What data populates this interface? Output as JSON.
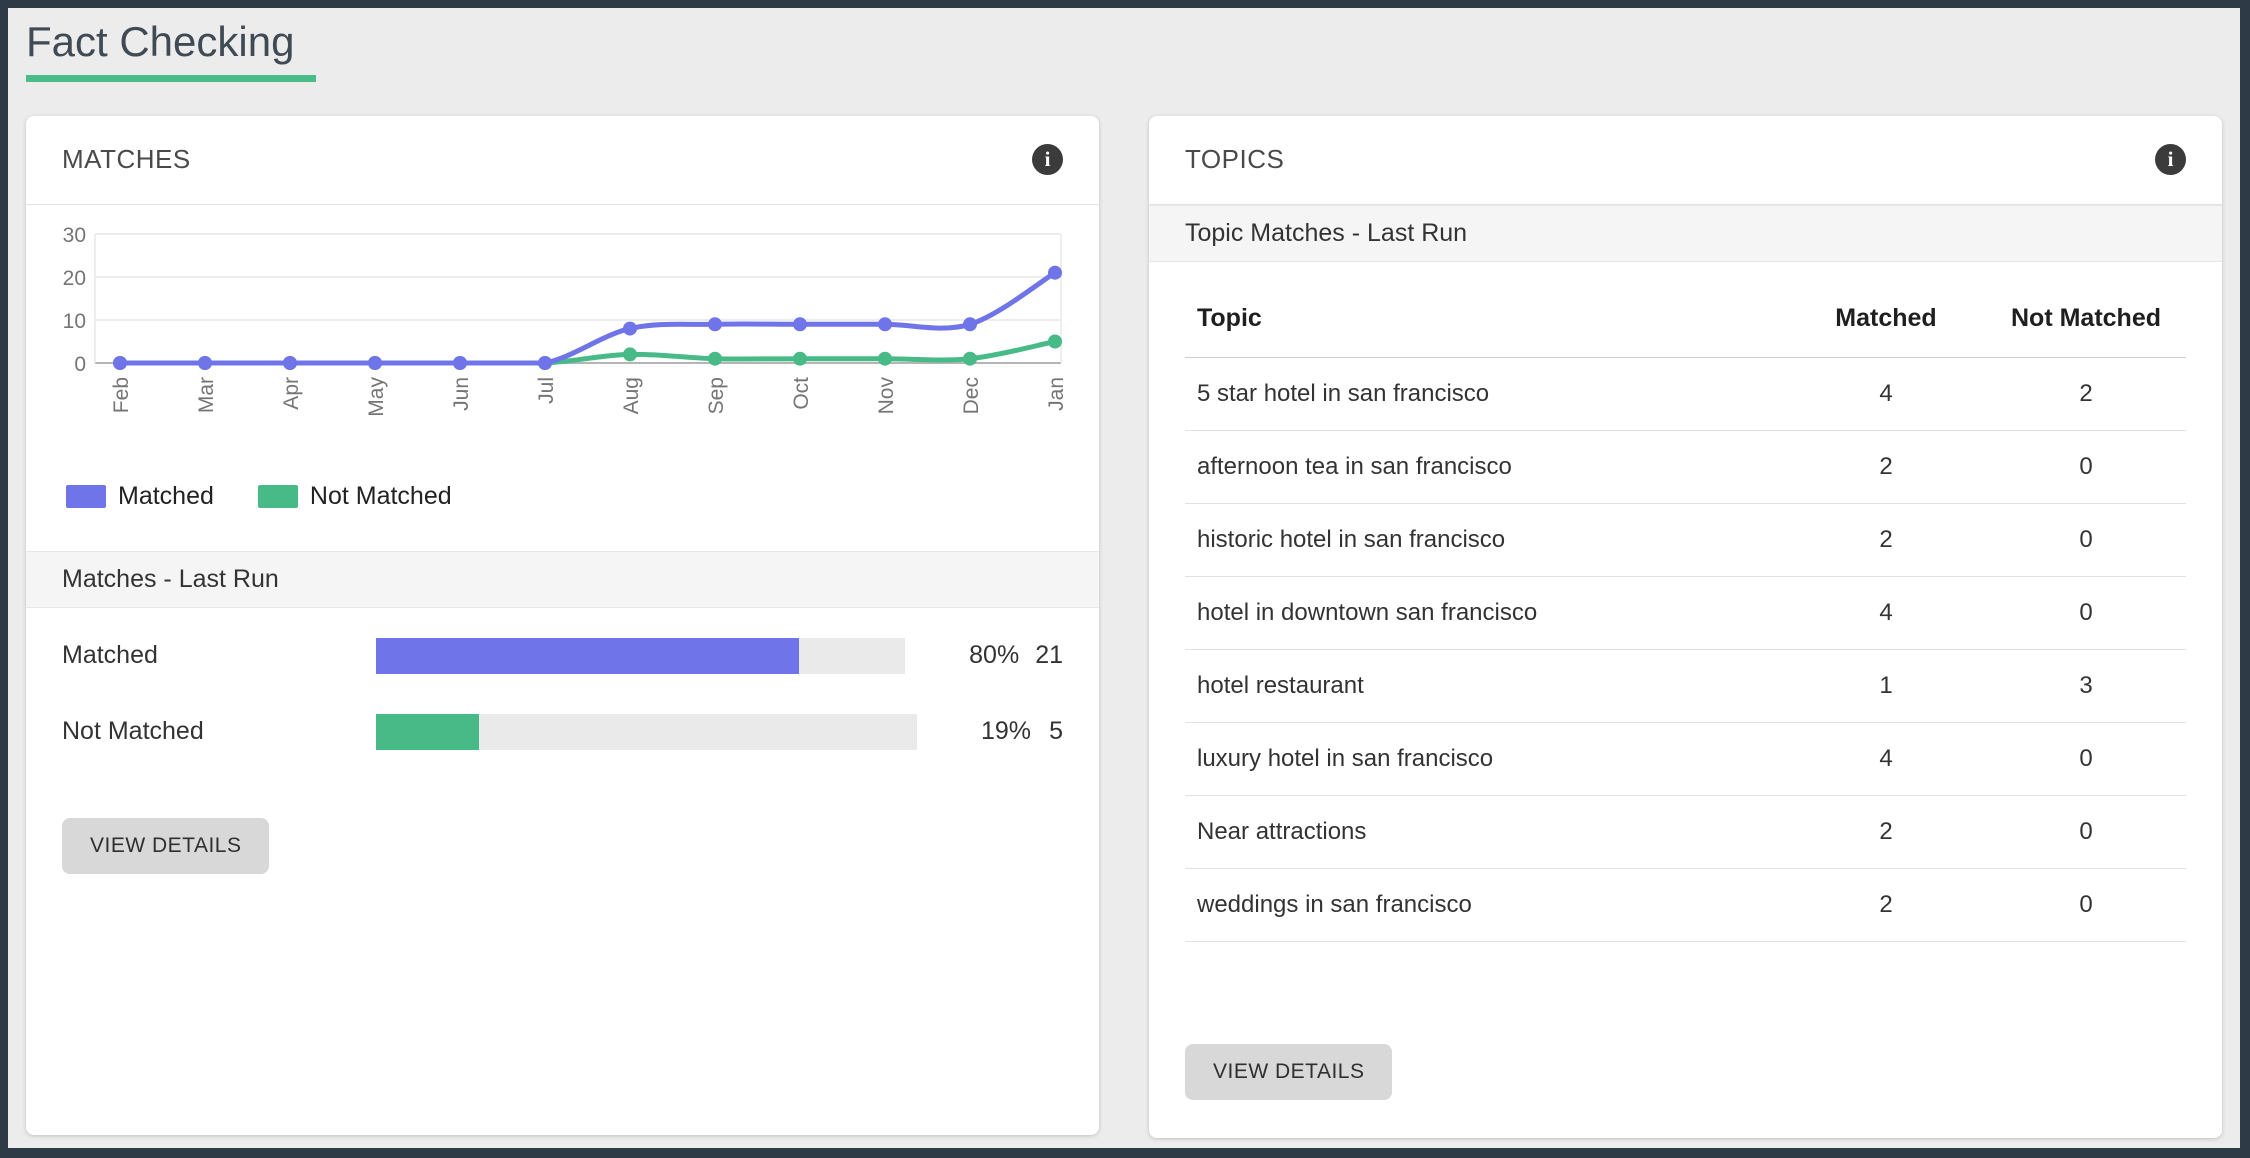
{
  "page": {
    "title": "Fact Checking"
  },
  "colors": {
    "accent_green": "#4bbb88",
    "matched": "#6f74e8",
    "not_matched": "#47ba88",
    "frame": "#2e3a45"
  },
  "matches_card": {
    "title": "MATCHES",
    "info_icon_glyph": "i",
    "section_title": "Matches - Last Run",
    "bars": [
      {
        "label": "Matched",
        "percent_label": "80%",
        "count_label": "21",
        "fill_percent": 80,
        "color": "#6f74e8"
      },
      {
        "label": "Not Matched",
        "percent_label": "19%",
        "count_label": "5",
        "fill_percent": 19,
        "color": "#47ba88"
      }
    ],
    "view_details_label": "VIEW DETAILS"
  },
  "topics_card": {
    "title": "TOPICS",
    "info_icon_glyph": "i",
    "section_title": "Topic Matches - Last Run",
    "columns": [
      "Topic",
      "Matched",
      "Not Matched"
    ],
    "rows": [
      {
        "topic": "5 star hotel in san francisco",
        "matched": "4",
        "not_matched": "2"
      },
      {
        "topic": "afternoon tea in san francisco",
        "matched": "2",
        "not_matched": "0"
      },
      {
        "topic": "historic hotel in san francisco",
        "matched": "2",
        "not_matched": "0"
      },
      {
        "topic": "hotel in downtown san francisco",
        "matched": "4",
        "not_matched": "0"
      },
      {
        "topic": "hotel restaurant",
        "matched": "1",
        "not_matched": "3"
      },
      {
        "topic": "luxury hotel in san francisco",
        "matched": "4",
        "not_matched": "0"
      },
      {
        "topic": "Near attractions",
        "matched": "2",
        "not_matched": "0"
      },
      {
        "topic": "weddings in san francisco",
        "matched": "2",
        "not_matched": "0"
      }
    ],
    "view_details_label": "VIEW DETAILS"
  },
  "chart_data": {
    "type": "line",
    "categories": [
      "Feb",
      "Mar",
      "Apr",
      "May",
      "Jun",
      "Jul",
      "Aug",
      "Sep",
      "Oct",
      "Nov",
      "Dec",
      "Jan"
    ],
    "series": [
      {
        "name": "Matched",
        "color": "#6f74e8",
        "values": [
          0,
          0,
          0,
          0,
          0,
          0,
          8,
          9,
          9,
          9,
          9,
          21
        ]
      },
      {
        "name": "Not Matched",
        "color": "#47ba88",
        "values": [
          0,
          0,
          0,
          0,
          0,
          0,
          2,
          1,
          1,
          1,
          1,
          5
        ]
      }
    ],
    "ylim": [
      0,
      30
    ],
    "yticks": [
      0,
      10,
      20,
      30
    ],
    "grid": true,
    "legend_position": "bottom",
    "curve": "smooth",
    "title": "",
    "xlabel": "",
    "ylabel": ""
  }
}
